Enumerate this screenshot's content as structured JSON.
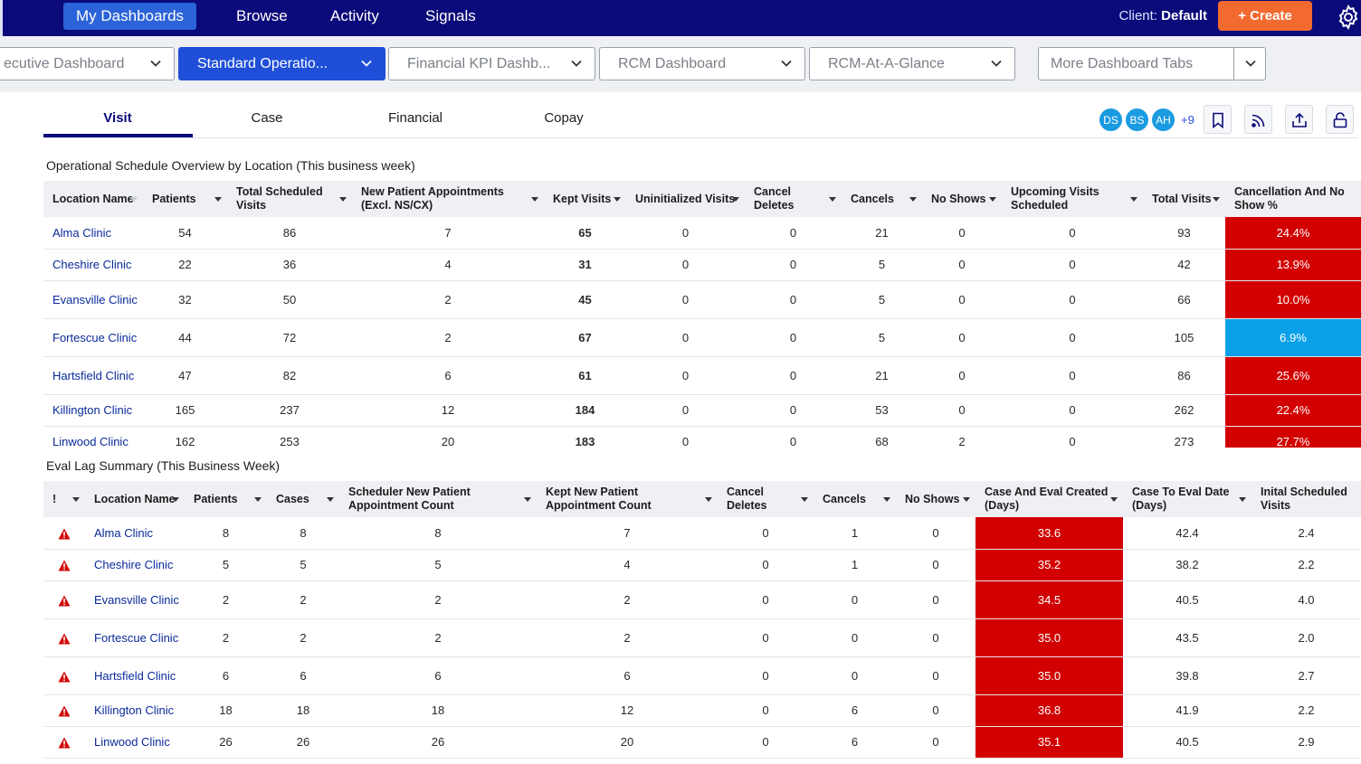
{
  "nav": {
    "items": [
      "My Dashboards",
      "Browse",
      "Activity",
      "Signals"
    ],
    "client_label": "Client:",
    "client_value": "Default",
    "create_label": "+ Create"
  },
  "dashboard_tabs": {
    "tabs": [
      "ecutive Dashboard",
      "Standard Operatio...",
      "Financial KPI Dashb...",
      "RCM Dashboard",
      "RCM-At-A-Glance"
    ],
    "more_label": "More Dashboard Tabs"
  },
  "subtabs": [
    "Visit",
    "Case",
    "Financial",
    "Copay"
  ],
  "avatars": [
    "DS",
    "BS",
    "AH"
  ],
  "avatar_more": "+9",
  "colors": {
    "nav_bg": "#0a0a7a",
    "accent": "#1f4fd8",
    "create": "#f26a30",
    "alert_red": "#d20000",
    "good_blue": "#0aa0e8"
  },
  "table1": {
    "title": "Operational Schedule Overview by Location (This business week)",
    "headers": [
      "Location Name",
      "Patients",
      "Total Scheduled Visits",
      "New Patient Appointments (Excl. NS/CX)",
      "Kept Visits",
      "Uninitialized Visits",
      "Cancel Deletes",
      "Cancels",
      "No Shows",
      "Upcoming Visits Scheduled",
      "Total Visits",
      "Cancellation And No Show %"
    ],
    "rows": [
      [
        "Alma Clinic",
        "54",
        "86",
        "7",
        "65",
        "0",
        "0",
        "21",
        "0",
        "0",
        "93",
        "24.4%"
      ],
      [
        "Cheshire Clinic",
        "22",
        "36",
        "4",
        "31",
        "0",
        "0",
        "5",
        "0",
        "0",
        "42",
        "13.9%"
      ],
      [
        "Evansville Clinic",
        "32",
        "50",
        "2",
        "45",
        "0",
        "0",
        "5",
        "0",
        "0",
        "66",
        "10.0%"
      ],
      [
        "Fortescue Clinic",
        "44",
        "72",
        "2",
        "67",
        "0",
        "0",
        "5",
        "0",
        "0",
        "105",
        "6.9%"
      ],
      [
        "Hartsfield Clinic",
        "47",
        "82",
        "6",
        "61",
        "0",
        "0",
        "21",
        "0",
        "0",
        "86",
        "25.6%"
      ],
      [
        "Killington Clinic",
        "165",
        "237",
        "12",
        "184",
        "0",
        "0",
        "53",
        "0",
        "0",
        "262",
        "22.4%"
      ],
      [
        "Linwood Clinic",
        "162",
        "253",
        "20",
        "183",
        "0",
        "0",
        "68",
        "2",
        "0",
        "273",
        "27.7%"
      ]
    ],
    "pct_status": [
      "red",
      "red",
      "red",
      "blue",
      "red",
      "red",
      "red"
    ]
  },
  "table2": {
    "title": "Eval Lag Summary (This Business Week)",
    "headers": [
      "!",
      "Location Name",
      "Patients",
      "Cases",
      "Scheduler New Patient Appointment Count",
      "Kept New Patient Appointment Count",
      "Cancel Deletes",
      "Cancels",
      "No Shows",
      "Case And Eval Created (Days)",
      "Case To Eval Date (Days)",
      "Inital Scheduled Visits"
    ],
    "rows": [
      [
        "Alma Clinic",
        "8",
        "8",
        "8",
        "7",
        "0",
        "1",
        "0",
        "33.6",
        "42.4",
        "2.4"
      ],
      [
        "Cheshire Clinic",
        "5",
        "5",
        "5",
        "4",
        "0",
        "1",
        "0",
        "35.2",
        "38.2",
        "2.2"
      ],
      [
        "Evansville Clinic",
        "2",
        "2",
        "2",
        "2",
        "0",
        "0",
        "0",
        "34.5",
        "40.5",
        "4.0"
      ],
      [
        "Fortescue Clinic",
        "2",
        "2",
        "2",
        "2",
        "0",
        "0",
        "0",
        "35.0",
        "43.5",
        "2.0"
      ],
      [
        "Hartsfield Clinic",
        "6",
        "6",
        "6",
        "6",
        "0",
        "0",
        "0",
        "35.0",
        "39.8",
        "2.7"
      ],
      [
        "Killington Clinic",
        "18",
        "18",
        "18",
        "12",
        "0",
        "6",
        "0",
        "36.8",
        "41.9",
        "2.2"
      ],
      [
        "Linwood Clinic",
        "26",
        "26",
        "26",
        "20",
        "0",
        "6",
        "0",
        "35.1",
        "40.5",
        "2.9"
      ]
    ]
  }
}
